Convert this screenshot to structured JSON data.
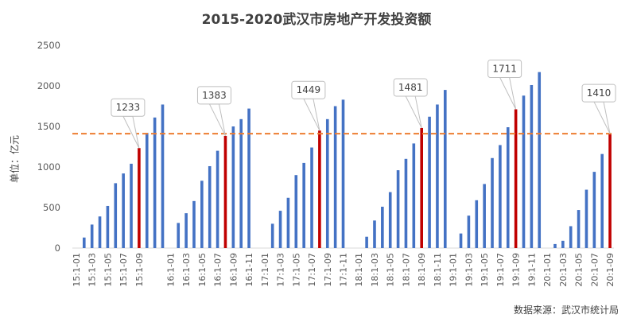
{
  "chart_data": {
    "type": "bar",
    "title": "2015-2020武汉市房地产开发投资额",
    "ylabel": "单位：亿元",
    "source": "数据来源：武汉市统计局",
    "ylim": [
      0,
      2500
    ],
    "yticks": [
      0,
      500,
      1000,
      1500,
      2000,
      2500
    ],
    "grid": false,
    "reference_line": {
      "value": 1410,
      "style": "dashed",
      "color": "#ED7D31"
    },
    "colors": {
      "bar": "#4472C4",
      "highlight": "#C00000",
      "reference": "#ED7D31"
    },
    "categories": [
      "15:1-01",
      "15:1-02",
      "15:1-03",
      "15:1-04",
      "15:1-05",
      "15:1-06",
      "15:1-07",
      "15:1-08",
      "15:1-09",
      "15:1-10",
      "15:1-11",
      "15:1-12",
      "16:1-01",
      "16:1-02",
      "16:1-03",
      "16:1-04",
      "16:1-05",
      "16:1-06",
      "16:1-07",
      "16:1-08",
      "16:1-09",
      "16:1-10",
      "16:1-11",
      "16:1-12",
      "17:1-01",
      "17:1-02",
      "17:1-03",
      "17:1-04",
      "17:1-05",
      "17:1-06",
      "17:1-07",
      "17:1-08",
      "17:1-09",
      "17:1-10",
      "17:1-11",
      "17:1-12",
      "18:1-01",
      "18:1-02",
      "18:1-03",
      "18:1-04",
      "18:1-05",
      "18:1-06",
      "18:1-07",
      "18:1-08",
      "18:1-09",
      "18:1-10",
      "18:1-11",
      "18:1-12",
      "19:1-01",
      "19:1-02",
      "19:1-03",
      "19:1-04",
      "19:1-05",
      "19:1-06",
      "19:1-07",
      "19:1-08",
      "19:1-09",
      "19:1-10",
      "19:1-11",
      "19:1-12",
      "20:1-01",
      "20:1-02",
      "20:1-03",
      "20:1-04",
      "20:1-05",
      "20:1-06",
      "20:1-07",
      "20:1-08",
      "20:1-09"
    ],
    "tick_labels": [
      "15:1-01",
      "15:1-03",
      "15:1-05",
      "15:1-07",
      "15:1-09",
      "16:1-01",
      "16:1-03",
      "16:1-05",
      "16:1-07",
      "16:1-09",
      "16:1-11",
      "17:1-01",
      "17:1-03",
      "17:1-05",
      "17:1-07",
      "17:1-09",
      "17:1-11",
      "18:1-01",
      "18:1-03",
      "18:1-05",
      "18:1-07",
      "18:1-09",
      "18:1-11",
      "19:1-01",
      "19:1-03",
      "19:1-05",
      "19:1-07",
      "19:1-09",
      "19:1-11",
      "20:1-01",
      "20:1-03",
      "20:1-05",
      "20:1-07",
      "20:1-09"
    ],
    "values": [
      null,
      130,
      290,
      390,
      520,
      800,
      920,
      1040,
      1233,
      1420,
      1610,
      1770,
      null,
      310,
      430,
      580,
      830,
      1010,
      1200,
      1383,
      1500,
      1590,
      1720,
      null,
      null,
      300,
      460,
      620,
      900,
      1050,
      1240,
      1449,
      1590,
      1750,
      1830,
      null,
      null,
      140,
      340,
      510,
      690,
      960,
      1100,
      1290,
      1481,
      1620,
      1770,
      1950,
      null,
      180,
      400,
      590,
      790,
      1110,
      1270,
      1490,
      1711,
      1880,
      2010,
      2170,
      null,
      50,
      90,
      270,
      470,
      720,
      940,
      1160,
      1410
    ],
    "highlight_indices": [
      8,
      19,
      31,
      44,
      56,
      68
    ],
    "annotations": [
      {
        "index": 8,
        "text": "1233"
      },
      {
        "index": 19,
        "text": "1383"
      },
      {
        "index": 31,
        "text": "1449"
      },
      {
        "index": 44,
        "text": "1481"
      },
      {
        "index": 56,
        "text": "1711"
      },
      {
        "index": 68,
        "text": "1410"
      }
    ]
  }
}
